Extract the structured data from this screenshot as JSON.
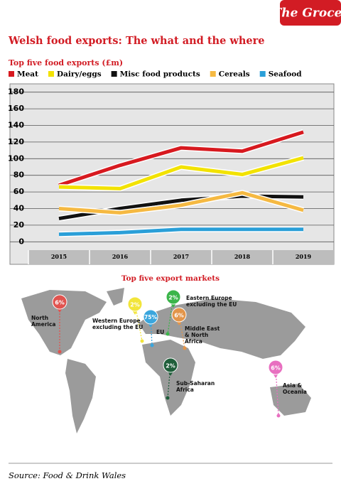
{
  "header": {
    "brand": "The Grocer",
    "title": "Welsh food exports: The what and the where"
  },
  "chart_data": {
    "type": "line",
    "title": "Top five food exports (£m)",
    "categories": [
      "2015",
      "2016",
      "2017",
      "2018",
      "2019"
    ],
    "series": [
      {
        "name": "Meat",
        "color": "#d7191f",
        "values": [
          68,
          92,
          113,
          109,
          132
        ]
      },
      {
        "name": "Dairy/eggs",
        "color": "#f2e200",
        "values": [
          66,
          64,
          90,
          81,
          101
        ]
      },
      {
        "name": "Misc food products",
        "color": "#111111",
        "values": [
          28,
          40,
          50,
          55,
          54
        ]
      },
      {
        "name": "Cereals",
        "color": "#f5b942",
        "values": [
          40,
          35,
          44,
          59,
          38
        ]
      },
      {
        "name": "Seafood",
        "color": "#2a9fd8",
        "values": [
          9,
          11,
          15,
          15,
          15
        ]
      }
    ],
    "ylim": [
      -10,
      190
    ],
    "yticks": [
      0,
      20,
      40,
      60,
      80,
      100,
      120,
      140,
      160,
      180
    ],
    "grid": true
  },
  "map": {
    "title": "Top five export markets",
    "markets": [
      {
        "label": [
          "North",
          "America"
        ],
        "share": "6%",
        "color": "#e0534f"
      },
      {
        "label": [
          "Western Europe",
          "excluding the EU"
        ],
        "share": "2%",
        "color": "#f2e53a"
      },
      {
        "label": [
          "EU"
        ],
        "share": "75%",
        "color": "#3aa6dd"
      },
      {
        "label": [
          "Eastern Europe",
          "excluding the EU"
        ],
        "share": "2%",
        "color": "#3bb54a"
      },
      {
        "label": [
          "Middle East",
          "& North",
          "Africa"
        ],
        "share": "6%",
        "color": "#e3954a"
      },
      {
        "label": [
          "Sub-Saharan",
          "Africa"
        ],
        "share": "2%",
        "color": "#1f5e3a"
      },
      {
        "label": [
          "Asia &",
          "Oceania"
        ],
        "share": "6%",
        "color": "#e86fc0"
      }
    ]
  },
  "source": "Source: Food & Drink Wales"
}
